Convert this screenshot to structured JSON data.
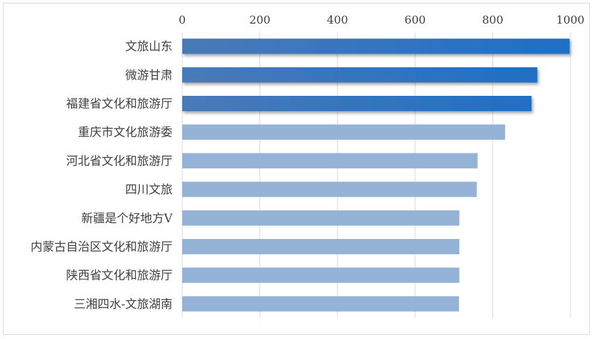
{
  "chart_data": {
    "type": "bar",
    "orientation": "horizontal",
    "title": "",
    "xlabel": "",
    "ylabel": "",
    "xlim": [
      0,
      1000
    ],
    "x_ticks": [
      "0",
      "200",
      "400",
      "600",
      "800",
      "1000"
    ],
    "x_axis_position": "top",
    "grid": "vertical",
    "legend": "none",
    "categories": [
      "文旅山东",
      "微游甘肃",
      "福建省文化和旅游厅",
      "重庆市文化旅游委",
      "河北省文化和旅游厅",
      "四川文旅",
      "新疆是个好地方V",
      "内蒙古自治区文化和旅游厅",
      "陕西省文化和旅游厅",
      "三湘四水-文旅湖南"
    ],
    "values": [
      998,
      915,
      900,
      832,
      761,
      759,
      714,
      714,
      714,
      713
    ],
    "highlighted_count": 3,
    "colors": {
      "highlight_start": "#4a7ab8",
      "highlight_end": "#1f6fc6",
      "normal": "#95b3d7",
      "grid": "#d9d9d9",
      "text": "#404040"
    }
  }
}
